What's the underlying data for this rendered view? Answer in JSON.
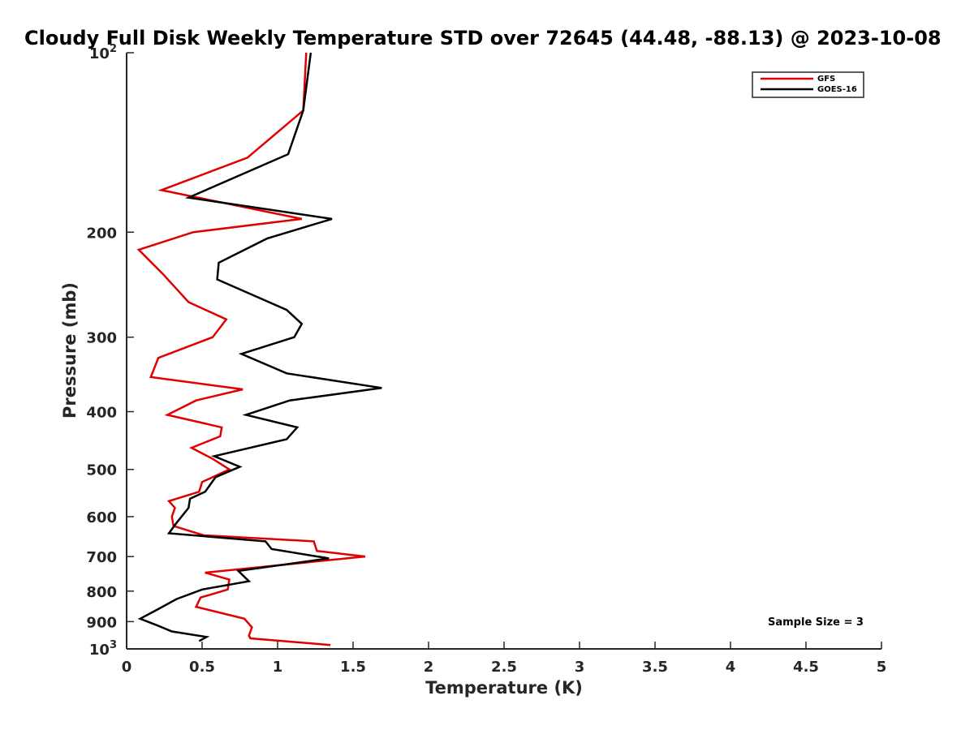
{
  "chart_data": {
    "type": "line",
    "title": "Cloudy Full Disk Weekly Temperature STD over 72645 (44.48, -88.13) @ 2023-10-08",
    "xlabel": "Temperature (K)",
    "ylabel": "Pressure (mb)",
    "xlim": [
      0,
      5
    ],
    "ylim": [
      100,
      1000
    ],
    "y_scale": "log",
    "y_reversed": true,
    "x_ticks": [
      "0",
      "0.5",
      "1",
      "1.5",
      "2",
      "2.5",
      "3",
      "3.5",
      "4",
      "4.5",
      "5"
    ],
    "y_ticks": [
      {
        "value": 100,
        "label": "10",
        "sup": "2"
      },
      {
        "value": 200,
        "label": "200",
        "sup": ""
      },
      {
        "value": 300,
        "label": "300",
        "sup": ""
      },
      {
        "value": 400,
        "label": "400",
        "sup": ""
      },
      {
        "value": 500,
        "label": "500",
        "sup": ""
      },
      {
        "value": 600,
        "label": "600",
        "sup": ""
      },
      {
        "value": 700,
        "label": "700",
        "sup": ""
      },
      {
        "value": 800,
        "label": "800",
        "sup": ""
      },
      {
        "value": 900,
        "label": "900",
        "sup": ""
      },
      {
        "value": 1000,
        "label": "10",
        "sup": "3"
      }
    ],
    "grid": false,
    "legend_position": "top-right",
    "annotation": "Sample Size = 3",
    "series": [
      {
        "name": "GFS",
        "color": "#e00000",
        "points": [
          [
            1.19,
            100
          ],
          [
            1.17,
            125
          ],
          [
            0.8,
            150
          ],
          [
            0.23,
            170
          ],
          [
            1.16,
            190
          ],
          [
            0.44,
            200
          ],
          [
            0.08,
            214
          ],
          [
            0.24,
            235
          ],
          [
            0.41,
            262
          ],
          [
            0.66,
            280
          ],
          [
            0.57,
            300
          ],
          [
            0.21,
            325
          ],
          [
            0.16,
            350
          ],
          [
            0.77,
            367
          ],
          [
            0.46,
            383
          ],
          [
            0.27,
            405
          ],
          [
            0.63,
            425
          ],
          [
            0.62,
            440
          ],
          [
            0.43,
            460
          ],
          [
            0.57,
            480
          ],
          [
            0.68,
            500
          ],
          [
            0.5,
            525
          ],
          [
            0.48,
            545
          ],
          [
            0.28,
            565
          ],
          [
            0.32,
            580
          ],
          [
            0.3,
            600
          ],
          [
            0.31,
            622
          ],
          [
            0.51,
            645
          ],
          [
            1.24,
            660
          ],
          [
            1.26,
            685
          ],
          [
            1.58,
            700
          ],
          [
            0.52,
            745
          ],
          [
            0.68,
            765
          ],
          [
            0.67,
            795
          ],
          [
            0.49,
            820
          ],
          [
            0.46,
            850
          ],
          [
            0.78,
            890
          ],
          [
            0.83,
            920
          ],
          [
            0.81,
            950
          ],
          [
            0.82,
            960
          ],
          [
            1.35,
            985
          ]
        ]
      },
      {
        "name": "GOES-16",
        "color": "#000000",
        "points": [
          [
            1.22,
            100
          ],
          [
            1.17,
            125
          ],
          [
            1.07,
            148
          ],
          [
            0.41,
            175
          ],
          [
            1.36,
            190
          ],
          [
            0.93,
            205
          ],
          [
            0.61,
            225
          ],
          [
            0.6,
            240
          ],
          [
            1.06,
            270
          ],
          [
            1.16,
            285
          ],
          [
            1.11,
            300
          ],
          [
            0.76,
            320
          ],
          [
            1.06,
            345
          ],
          [
            1.69,
            365
          ],
          [
            1.08,
            383
          ],
          [
            0.79,
            405
          ],
          [
            1.13,
            425
          ],
          [
            1.06,
            445
          ],
          [
            0.58,
            475
          ],
          [
            0.75,
            495
          ],
          [
            0.59,
            515
          ],
          [
            0.52,
            545
          ],
          [
            0.42,
            560
          ],
          [
            0.41,
            580
          ],
          [
            0.33,
            615
          ],
          [
            0.28,
            640
          ],
          [
            0.92,
            660
          ],
          [
            0.96,
            680
          ],
          [
            1.34,
            705
          ],
          [
            0.74,
            740
          ],
          [
            0.81,
            770
          ],
          [
            0.5,
            795
          ],
          [
            0.33,
            825
          ],
          [
            0.2,
            860
          ],
          [
            0.09,
            890
          ],
          [
            0.21,
            915
          ],
          [
            0.3,
            935
          ],
          [
            0.53,
            955
          ],
          [
            0.48,
            970
          ]
        ]
      }
    ]
  }
}
